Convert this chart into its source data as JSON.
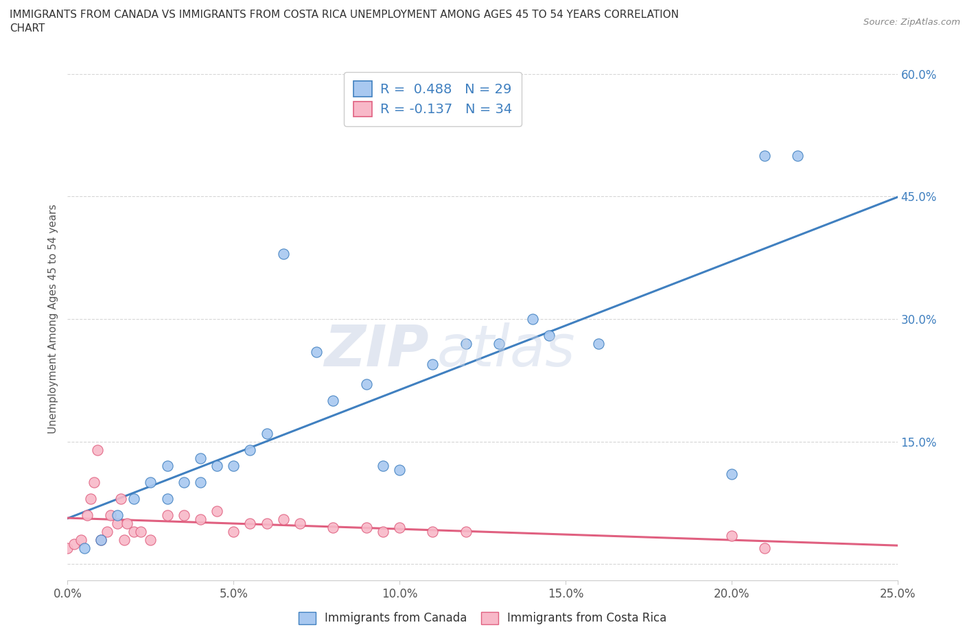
{
  "title_line1": "IMMIGRANTS FROM CANADA VS IMMIGRANTS FROM COSTA RICA UNEMPLOYMENT AMONG AGES 45 TO 54 YEARS CORRELATION",
  "title_line2": "CHART",
  "source": "Source: ZipAtlas.com",
  "ylabel": "Unemployment Among Ages 45 to 54 years",
  "xlim": [
    0.0,
    0.25
  ],
  "ylim": [
    -0.02,
    0.62
  ],
  "xticks": [
    0.0,
    0.05,
    0.1,
    0.15,
    0.2,
    0.25
  ],
  "yticks": [
    0.0,
    0.15,
    0.3,
    0.45,
    0.6
  ],
  "xticklabels": [
    "0.0%",
    "5.0%",
    "10.0%",
    "15.0%",
    "20.0%",
    "25.0%"
  ],
  "yticklabels": [
    "",
    "15.0%",
    "30.0%",
    "45.0%",
    "60.0%"
  ],
  "canada_R": 0.488,
  "canada_N": 29,
  "costarica_R": -0.137,
  "costarica_N": 34,
  "canada_color": "#a8c8f0",
  "canada_line_color": "#4080c0",
  "costarica_color": "#f8b8c8",
  "costarica_line_color": "#e06080",
  "canada_x": [
    0.005,
    0.01,
    0.015,
    0.02,
    0.025,
    0.03,
    0.03,
    0.035,
    0.04,
    0.04,
    0.045,
    0.05,
    0.055,
    0.06,
    0.065,
    0.075,
    0.08,
    0.09,
    0.095,
    0.1,
    0.11,
    0.12,
    0.13,
    0.14,
    0.145,
    0.16,
    0.2,
    0.21,
    0.22
  ],
  "canada_y": [
    0.02,
    0.03,
    0.06,
    0.08,
    0.1,
    0.08,
    0.12,
    0.1,
    0.1,
    0.13,
    0.12,
    0.12,
    0.14,
    0.16,
    0.38,
    0.26,
    0.2,
    0.22,
    0.12,
    0.115,
    0.245,
    0.27,
    0.27,
    0.3,
    0.28,
    0.27,
    0.11,
    0.5,
    0.5
  ],
  "costarica_x": [
    0.0,
    0.002,
    0.004,
    0.006,
    0.007,
    0.008,
    0.009,
    0.01,
    0.012,
    0.013,
    0.015,
    0.016,
    0.017,
    0.018,
    0.02,
    0.022,
    0.025,
    0.03,
    0.035,
    0.04,
    0.045,
    0.05,
    0.055,
    0.06,
    0.065,
    0.07,
    0.08,
    0.09,
    0.095,
    0.1,
    0.11,
    0.12,
    0.2,
    0.21
  ],
  "costarica_y": [
    0.02,
    0.025,
    0.03,
    0.06,
    0.08,
    0.1,
    0.14,
    0.03,
    0.04,
    0.06,
    0.05,
    0.08,
    0.03,
    0.05,
    0.04,
    0.04,
    0.03,
    0.06,
    0.06,
    0.055,
    0.065,
    0.04,
    0.05,
    0.05,
    0.055,
    0.05,
    0.045,
    0.045,
    0.04,
    0.045,
    0.04,
    0.04,
    0.035,
    0.02
  ],
  "watermark_zip": "ZIP",
  "watermark_atlas": "atlas",
  "legend_label_canada": "Immigrants from Canada",
  "legend_label_costarica": "Immigrants from Costa Rica",
  "background_color": "#ffffff",
  "grid_color": "#cccccc"
}
